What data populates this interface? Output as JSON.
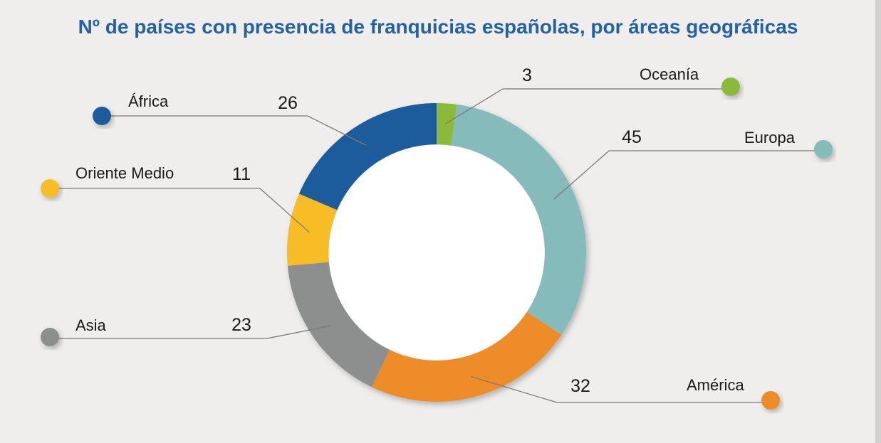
{
  "chart_data": {
    "type": "donut",
    "title": "Nº de países con presencia de franquicias españolas, por áreas geográficas",
    "categories": [
      "Oceanía",
      "Europa",
      "América",
      "Asia",
      "Oriente Medio",
      "África"
    ],
    "values": [
      3,
      45,
      32,
      23,
      11,
      26
    ],
    "colors": [
      "#8bba3b",
      "#86bbbc",
      "#ef8c2b",
      "#8c8f8e",
      "#f8bc28",
      "#1c5c9c"
    ],
    "legend_placement": "around the ring, with leader lines"
  }
}
